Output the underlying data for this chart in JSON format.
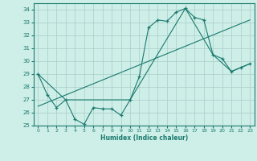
{
  "xlabel": "Humidex (Indice chaleur)",
  "line_color": "#1a7a6e",
  "bg_color": "#ceeee8",
  "grid_color": "#a8cdc8",
  "xlim": [
    -0.5,
    23.5
  ],
  "ylim": [
    25,
    34.5
  ],
  "yticks": [
    25,
    26,
    27,
    28,
    29,
    30,
    31,
    32,
    33,
    34
  ],
  "xticks": [
    0,
    1,
    2,
    3,
    4,
    5,
    6,
    7,
    8,
    9,
    10,
    11,
    12,
    13,
    14,
    15,
    16,
    17,
    18,
    19,
    20,
    21,
    22,
    23
  ],
  "series1_x": [
    0,
    1,
    2,
    3,
    4,
    5,
    6,
    7,
    8,
    9,
    10,
    11,
    12,
    13,
    14,
    15,
    16,
    17,
    18,
    19,
    20,
    21,
    22,
    23
  ],
  "series1_y": [
    29,
    27.4,
    26.4,
    27,
    25.5,
    25.1,
    26.4,
    26.3,
    26.3,
    25.8,
    27,
    28.8,
    32.6,
    33.2,
    33.1,
    33.8,
    34.1,
    33.4,
    33.2,
    30.5,
    30.2,
    29.2,
    29.5,
    29.8
  ],
  "series2_x": [
    0,
    3,
    10,
    16,
    19,
    21,
    22,
    23
  ],
  "series2_y": [
    29,
    27,
    27,
    34.1,
    30.5,
    29.2,
    29.5,
    29.8
  ],
  "series3_x": [
    0,
    23
  ],
  "series3_y": [
    26.5,
    33.2
  ]
}
